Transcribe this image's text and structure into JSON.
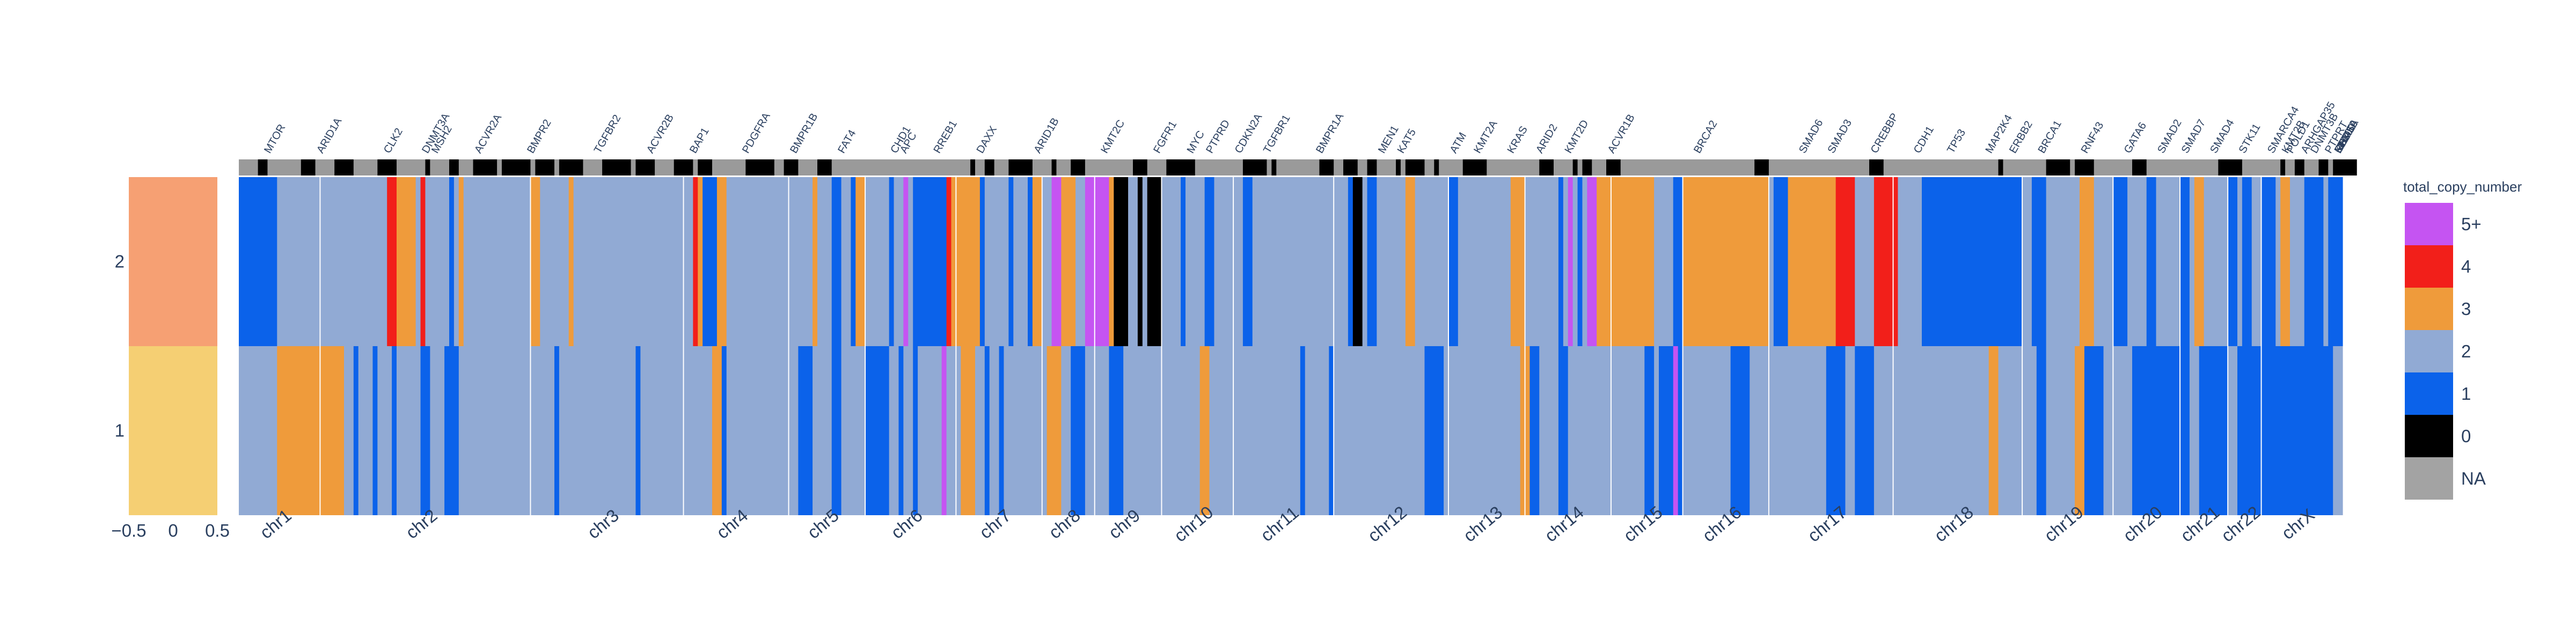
{
  "colors": {
    "5+": "#c554f2",
    "4": "#f21f1a",
    "3": "#ef9b3b",
    "2": "#91aad4",
    "1": "#0b62ea",
    "0": "#000000",
    "NA": "#a3a3a3"
  },
  "chart_data": [
    {
      "type": "heatmap",
      "name": "sample-annotation",
      "rows": [
        "2",
        "1"
      ],
      "row_colors": [
        "#f6a073",
        "#f5cf73"
      ],
      "xlim": [
        -0.5,
        0.5
      ],
      "x_ticks": [
        "−0.5",
        "0",
        "0.5"
      ]
    },
    {
      "type": "heatmap",
      "name": "copy-number",
      "rows": [
        "2",
        "1"
      ],
      "legend_title": "total_copy_number",
      "legend": [
        "5+",
        "4",
        "3",
        "2",
        "1",
        "0",
        "NA"
      ],
      "chromosomes": [
        "chr1",
        "chr2",
        "chr3",
        "chr4",
        "chr5",
        "chr6",
        "chr7",
        "chr8",
        "chr9",
        "chr10",
        "chr11",
        "chr12",
        "chr13",
        "chr14",
        "chr15",
        "chr16",
        "chr17",
        "chr18",
        "chr19",
        "chr20",
        "chr21",
        "chr22",
        "chrX"
      ],
      "chrom_starts": [
        0,
        17,
        61,
        93,
        115,
        131,
        150,
        168,
        179,
        193,
        208,
        229,
        253,
        269,
        287,
        302,
        320,
        346,
        373,
        392,
        406,
        416,
        423
      ],
      "num_columns": 440,
      "gene_labels": [
        {
          "name": "MTOR",
          "col": 6
        },
        {
          "name": "ARID1A",
          "col": 17
        },
        {
          "name": "CLK2",
          "col": 31
        },
        {
          "name": "DNMT3A",
          "col": 39
        },
        {
          "name": "MSH2",
          "col": 41
        },
        {
          "name": "ACVR2A",
          "col": 50
        },
        {
          "name": "BMPR2",
          "col": 61
        },
        {
          "name": "TGFBR2",
          "col": 75
        },
        {
          "name": "ACVR2B",
          "col": 86
        },
        {
          "name": "BAP1",
          "col": 95
        },
        {
          "name": "PDGFRA",
          "col": 106
        },
        {
          "name": "BMPR1B",
          "col": 116
        },
        {
          "name": "FAT4",
          "col": 126
        },
        {
          "name": "CHD1",
          "col": 137
        },
        {
          "name": "APC",
          "col": 139
        },
        {
          "name": "RREB1",
          "col": 146
        },
        {
          "name": "DAXX",
          "col": 155
        },
        {
          "name": "ARID1B",
          "col": 167
        },
        {
          "name": "KMT2C",
          "col": 181
        },
        {
          "name": "FGFR1",
          "col": 192
        },
        {
          "name": "MYC",
          "col": 199
        },
        {
          "name": "PTPRD",
          "col": 203
        },
        {
          "name": "CDKN2A",
          "col": 209
        },
        {
          "name": "TGFBR1",
          "col": 215
        },
        {
          "name": "BMPR1A",
          "col": 226
        },
        {
          "name": "MEN1",
          "col": 239
        },
        {
          "name": "KAT5",
          "col": 243
        },
        {
          "name": "ATM",
          "col": 254
        },
        {
          "name": "KMT2A",
          "col": 259
        },
        {
          "name": "KRAS",
          "col": 266
        },
        {
          "name": "ARID2",
          "col": 272
        },
        {
          "name": "KMT2D",
          "col": 278
        },
        {
          "name": "ACVR1B",
          "col": 287
        },
        {
          "name": "BRCA2",
          "col": 305
        },
        {
          "name": "SMAD6",
          "col": 327
        },
        {
          "name": "SMAD3",
          "col": 333
        },
        {
          "name": "CREBBP",
          "col": 342
        },
        {
          "name": "CDH1",
          "col": 351
        },
        {
          "name": "TP53",
          "col": 358
        },
        {
          "name": "MAP2K4",
          "col": 366
        },
        {
          "name": "ERBB2",
          "col": 371
        },
        {
          "name": "BRCA1",
          "col": 377
        },
        {
          "name": "RNF43",
          "col": 386
        },
        {
          "name": "GATA6",
          "col": 395
        },
        {
          "name": "SMAD2",
          "col": 402
        },
        {
          "name": "SMAD7",
          "col": 407
        },
        {
          "name": "SMAD4",
          "col": 413
        },
        {
          "name": "STK11",
          "col": 419
        },
        {
          "name": "SMARCA4",
          "col": 425
        },
        {
          "name": "KMT2B",
          "col": 428
        },
        {
          "name": "ARHGAP35",
          "col": 432
        },
        {
          "name": "POLD1",
          "col": 429
        },
        {
          "name": "DNMT3B",
          "col": 434
        },
        {
          "name": "PTPRT",
          "col": 437
        },
        {
          "name": "GNAS",
          "col": 440
        },
        {
          "name": "EP300",
          "col": 446
        },
        {
          "name": "KDM6A",
          "col": 452
        },
        {
          "name": "RBM10",
          "col": 454
        },
        {
          "name": "MED12",
          "col": 458
        }
      ],
      "row2_segments": [
        [
          0,
          8,
          "1"
        ],
        [
          8,
          31,
          "2"
        ],
        [
          31,
          33,
          "4"
        ],
        [
          33,
          37,
          "3"
        ],
        [
          37,
          38,
          "2"
        ],
        [
          38,
          39,
          "4"
        ],
        [
          39,
          44,
          "2"
        ],
        [
          44,
          45,
          "1"
        ],
        [
          45,
          46,
          "2"
        ],
        [
          46,
          47,
          "3"
        ],
        [
          47,
          61,
          "2"
        ],
        [
          61,
          63,
          "3"
        ],
        [
          63,
          69,
          "2"
        ],
        [
          69,
          70,
          "3"
        ],
        [
          70,
          95,
          "2"
        ],
        [
          95,
          96,
          "4"
        ],
        [
          96,
          97,
          "3"
        ],
        [
          97,
          100,
          "1"
        ],
        [
          100,
          102,
          "3"
        ],
        [
          102,
          120,
          "2"
        ],
        [
          120,
          121,
          "3"
        ],
        [
          121,
          124,
          "2"
        ],
        [
          124,
          126,
          "1"
        ],
        [
          126,
          128,
          "2"
        ],
        [
          128,
          129,
          "1"
        ],
        [
          129,
          131,
          "3"
        ],
        [
          131,
          136,
          "2"
        ],
        [
          136,
          137,
          "1"
        ],
        [
          137,
          139,
          "2"
        ],
        [
          139,
          140,
          "5+"
        ],
        [
          140,
          141,
          "2"
        ],
        [
          141,
          148,
          "1"
        ],
        [
          148,
          149,
          "4"
        ],
        [
          149,
          155,
          "3"
        ],
        [
          155,
          156,
          "1"
        ],
        [
          156,
          161,
          "2"
        ],
        [
          161,
          162,
          "1"
        ],
        [
          162,
          165,
          "2"
        ],
        [
          165,
          166,
          "1"
        ],
        [
          166,
          168,
          "3"
        ],
        [
          168,
          170,
          "2"
        ],
        [
          170,
          172,
          "5+"
        ],
        [
          172,
          175,
          "3"
        ],
        [
          175,
          177,
          "2"
        ],
        [
          177,
          182,
          "5+"
        ],
        [
          182,
          183,
          "3"
        ],
        [
          183,
          186,
          "0"
        ],
        [
          186,
          188,
          "2"
        ],
        [
          188,
          189,
          "0"
        ],
        [
          189,
          190,
          "2"
        ],
        [
          190,
          193,
          "0"
        ],
        [
          193,
          197,
          "2"
        ],
        [
          197,
          198,
          "1"
        ],
        [
          198,
          202,
          "2"
        ],
        [
          202,
          204,
          "1"
        ],
        [
          204,
          210,
          "2"
        ],
        [
          210,
          212,
          "1"
        ],
        [
          212,
          232,
          "2"
        ],
        [
          232,
          233,
          "1"
        ],
        [
          233,
          235,
          "0"
        ],
        [
          235,
          236,
          "2"
        ],
        [
          236,
          238,
          "1"
        ],
        [
          238,
          244,
          "2"
        ],
        [
          244,
          246,
          "3"
        ],
        [
          246,
          253,
          "2"
        ],
        [
          253,
          255,
          "1"
        ],
        [
          255,
          266,
          "2"
        ],
        [
          266,
          269,
          "3"
        ],
        [
          269,
          276,
          "2"
        ],
        [
          276,
          277,
          "1"
        ],
        [
          277,
          278,
          "2"
        ],
        [
          278,
          279,
          "5+"
        ],
        [
          279,
          280,
          "2"
        ],
        [
          280,
          281,
          "1"
        ],
        [
          281,
          282,
          "2"
        ],
        [
          282,
          284,
          "5+"
        ],
        [
          284,
          296,
          "3"
        ],
        [
          296,
          300,
          "2"
        ],
        [
          300,
          302,
          "1"
        ],
        [
          302,
          320,
          "3"
        ],
        [
          320,
          321,
          "2"
        ],
        [
          321,
          324,
          "1"
        ],
        [
          324,
          334,
          "3"
        ],
        [
          334,
          338,
          "4"
        ],
        [
          338,
          342,
          "2"
        ],
        [
          342,
          347,
          "4"
        ],
        [
          347,
          352,
          "2"
        ],
        [
          352,
          373,
          "1"
        ],
        [
          373,
          375,
          "2"
        ],
        [
          375,
          378,
          "1"
        ],
        [
          378,
          385,
          "2"
        ],
        [
          385,
          388,
          "3"
        ],
        [
          388,
          392,
          "2"
        ],
        [
          392,
          395,
          "1"
        ],
        [
          395,
          399,
          "2"
        ],
        [
          399,
          401,
          "1"
        ],
        [
          401,
          402,
          "2"
        ],
        [
          402,
          406,
          "2"
        ],
        [
          406,
          408,
          "1"
        ],
        [
          408,
          409,
          "2"
        ],
        [
          409,
          411,
          "3"
        ],
        [
          411,
          416,
          "2"
        ],
        [
          416,
          418,
          "1"
        ],
        [
          418,
          419,
          "2"
        ],
        [
          419,
          421,
          "1"
        ],
        [
          421,
          423,
          "2"
        ],
        [
          423,
          426,
          "1"
        ],
        [
          426,
          427,
          "2"
        ],
        [
          427,
          429,
          "3"
        ],
        [
          429,
          432,
          "2"
        ],
        [
          432,
          436,
          "1"
        ],
        [
          436,
          437,
          "2"
        ],
        [
          437,
          440,
          "1"
        ]
      ],
      "row1_segments": [
        [
          0,
          8,
          "2"
        ],
        [
          8,
          22,
          "3"
        ],
        [
          22,
          24,
          "2"
        ],
        [
          24,
          25,
          "1"
        ],
        [
          25,
          28,
          "2"
        ],
        [
          28,
          29,
          "1"
        ],
        [
          29,
          32,
          "2"
        ],
        [
          32,
          33,
          "1"
        ],
        [
          33,
          38,
          "2"
        ],
        [
          38,
          40,
          "1"
        ],
        [
          40,
          43,
          "2"
        ],
        [
          43,
          46,
          "1"
        ],
        [
          46,
          66,
          "2"
        ],
        [
          66,
          67,
          "1"
        ],
        [
          67,
          83,
          "2"
        ],
        [
          83,
          84,
          "1"
        ],
        [
          84,
          99,
          "2"
        ],
        [
          99,
          101,
          "3"
        ],
        [
          101,
          102,
          "1"
        ],
        [
          102,
          117,
          "2"
        ],
        [
          117,
          120,
          "1"
        ],
        [
          120,
          124,
          "2"
        ],
        [
          124,
          126,
          "1"
        ],
        [
          126,
          131,
          "2"
        ],
        [
          131,
          136,
          "1"
        ],
        [
          136,
          138,
          "2"
        ],
        [
          138,
          139,
          "1"
        ],
        [
          139,
          141,
          "2"
        ],
        [
          141,
          142,
          "1"
        ],
        [
          142,
          147,
          "2"
        ],
        [
          147,
          148,
          "5+"
        ],
        [
          148,
          151,
          "2"
        ],
        [
          151,
          154,
          "3"
        ],
        [
          154,
          156,
          "2"
        ],
        [
          156,
          157,
          "1"
        ],
        [
          157,
          159,
          "2"
        ],
        [
          159,
          160,
          "1"
        ],
        [
          160,
          169,
          "2"
        ],
        [
          169,
          172,
          "3"
        ],
        [
          172,
          174,
          "2"
        ],
        [
          174,
          177,
          "1"
        ],
        [
          177,
          182,
          "2"
        ],
        [
          182,
          185,
          "1"
        ],
        [
          185,
          190,
          "2"
        ],
        [
          190,
          201,
          "2"
        ],
        [
          201,
          203,
          "3"
        ],
        [
          203,
          222,
          "2"
        ],
        [
          222,
          223,
          "1"
        ],
        [
          223,
          228,
          "2"
        ],
        [
          228,
          229,
          "1"
        ],
        [
          229,
          248,
          "2"
        ],
        [
          248,
          252,
          "1"
        ],
        [
          252,
          268,
          "2"
        ],
        [
          268,
          270,
          "3"
        ],
        [
          270,
          272,
          "1"
        ],
        [
          272,
          276,
          "2"
        ],
        [
          276,
          278,
          "1"
        ],
        [
          278,
          294,
          "2"
        ],
        [
          294,
          296,
          "1"
        ],
        [
          296,
          297,
          "2"
        ],
        [
          297,
          300,
          "1"
        ],
        [
          300,
          301,
          "5+"
        ],
        [
          301,
          302,
          "1"
        ],
        [
          302,
          312,
          "2"
        ],
        [
          312,
          316,
          "1"
        ],
        [
          316,
          320,
          "2"
        ],
        [
          320,
          332,
          "2"
        ],
        [
          332,
          336,
          "1"
        ],
        [
          336,
          338,
          "2"
        ],
        [
          338,
          342,
          "1"
        ],
        [
          342,
          346,
          "2"
        ],
        [
          346,
          366,
          "2"
        ],
        [
          366,
          368,
          "3"
        ],
        [
          368,
          376,
          "2"
        ],
        [
          376,
          378,
          "1"
        ],
        [
          378,
          384,
          "2"
        ],
        [
          384,
          386,
          "3"
        ],
        [
          386,
          390,
          "1"
        ],
        [
          390,
          396,
          "2"
        ],
        [
          396,
          397,
          "1"
        ],
        [
          397,
          408,
          "1"
        ],
        [
          408,
          410,
          "2"
        ],
        [
          410,
          416,
          "1"
        ],
        [
          416,
          418,
          "2"
        ],
        [
          418,
          423,
          "1"
        ],
        [
          423,
          438,
          "1"
        ],
        [
          438,
          440,
          "2"
        ]
      ]
    }
  ]
}
